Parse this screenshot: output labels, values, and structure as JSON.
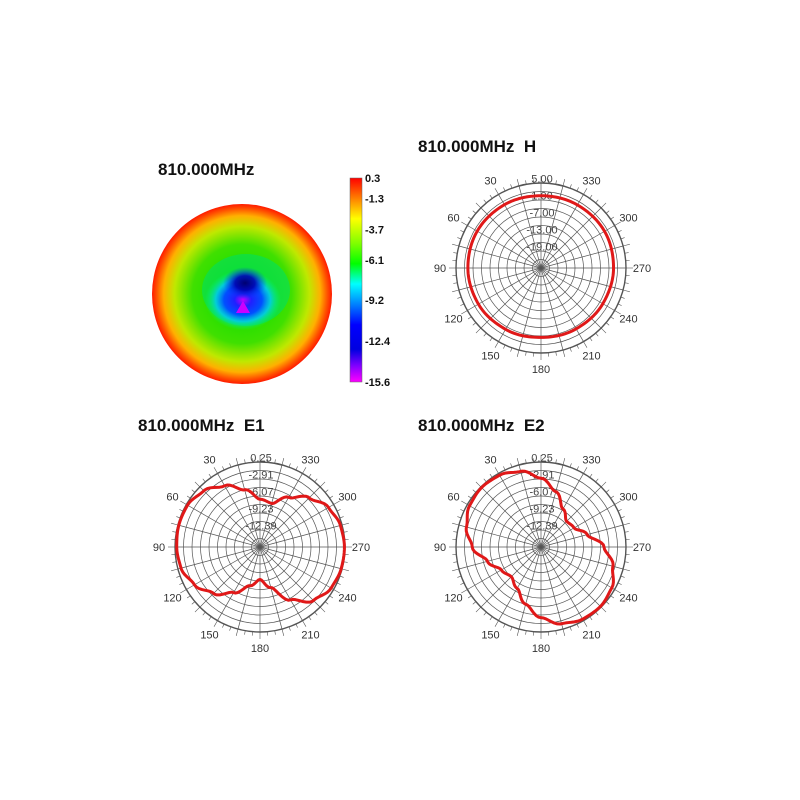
{
  "colors": {
    "curve": "#e01818",
    "grid": "#555555",
    "frame": "#444444",
    "center_spot": "#cc00ff"
  },
  "heatmap_panel": {
    "title": "810.000MHz",
    "colorbar_labels": [
      "0.3",
      "-1.3",
      "-3.7",
      "-6.1",
      "-9.2",
      "-12.4",
      "-15.6"
    ]
  },
  "chart_data": [
    {
      "type": "heatmap",
      "title": "810.000MHz",
      "colorbar": {
        "max": 0.3,
        "min": -15.6,
        "ticks": [
          0.3,
          -1.3,
          -3.7,
          -6.1,
          -9.2,
          -12.4,
          -15.6
        ]
      },
      "pattern": "mostly uniform around -1 to -4; a blue/violet null near the centre below middle reaching about -15.6"
    },
    {
      "type": "polar",
      "title": "810.000MHz  H",
      "angle_labels": [
        "0",
        "30",
        "60",
        "90",
        "120",
        "150",
        "180",
        "210",
        "240",
        "270",
        "300",
        "330"
      ],
      "radial_labels": [
        "5.00",
        "1.00",
        "-7.00",
        "-13.00",
        "-19.00"
      ],
      "rlim": [
        -25,
        5
      ],
      "series": [
        {
          "angles": [
            0,
            30,
            60,
            90,
            120,
            150,
            180,
            210,
            240,
            270,
            300,
            330
          ],
          "values": [
            0.5,
            0.8,
            1.0,
            0.8,
            0.5,
            0.0,
            -0.5,
            -0.2,
            0.2,
            0.6,
            0.9,
            0.7
          ]
        }
      ]
    },
    {
      "type": "polar",
      "title": "810.000MHz  E1",
      "angle_labels": [
        "0",
        "30",
        "60",
        "90",
        "120",
        "150",
        "180",
        "210",
        "240",
        "270",
        "300",
        "330"
      ],
      "radial_labels": [
        "0.25",
        "-2.91",
        "-6.07",
        "-9.23",
        "-12.39"
      ],
      "rlim": [
        -22,
        0.25
      ],
      "series": [
        {
          "angles": [
            0,
            15,
            30,
            45,
            60,
            75,
            90,
            105,
            120,
            135,
            150,
            165,
            180,
            195,
            210,
            225,
            240,
            255,
            270,
            285,
            300,
            315,
            330,
            345
          ],
          "values": [
            -9.5,
            -6.5,
            -3.5,
            -1.2,
            -0.1,
            0.0,
            -0.2,
            -0.6,
            -2.2,
            -4.8,
            -8.2,
            -11.5,
            -13.5,
            -11.0,
            -6.0,
            -2.2,
            -0.5,
            0.0,
            0.1,
            -0.2,
            -1.3,
            -3.8,
            -7.0,
            -10.2
          ]
        }
      ]
    },
    {
      "type": "polar",
      "title": "810.000MHz  E2",
      "angle_labels": [
        "0",
        "30",
        "60",
        "90",
        "120",
        "150",
        "180",
        "210",
        "240",
        "270",
        "300",
        "330"
      ],
      "radial_labels": [
        "0.25",
        "-2.91",
        "-6.07",
        "-9.23",
        "-12.39"
      ],
      "rlim": [
        -22,
        0.25
      ],
      "series": [
        {
          "angles": [
            0,
            15,
            30,
            45,
            60,
            75,
            90,
            105,
            120,
            135,
            150,
            165,
            180,
            195,
            210,
            225,
            240,
            255,
            270,
            285,
            300,
            315,
            330,
            345
          ],
          "values": [
            -4.0,
            -1.5,
            -0.3,
            0.0,
            -0.4,
            -1.8,
            -4.0,
            -7.5,
            -10.0,
            -11.0,
            -9.5,
            -6.5,
            -3.5,
            -1.2,
            -0.2,
            0.0,
            -0.6,
            -2.5,
            -5.5,
            -9.5,
            -12.0,
            -12.5,
            -10.5,
            -7.0
          ]
        }
      ]
    }
  ]
}
